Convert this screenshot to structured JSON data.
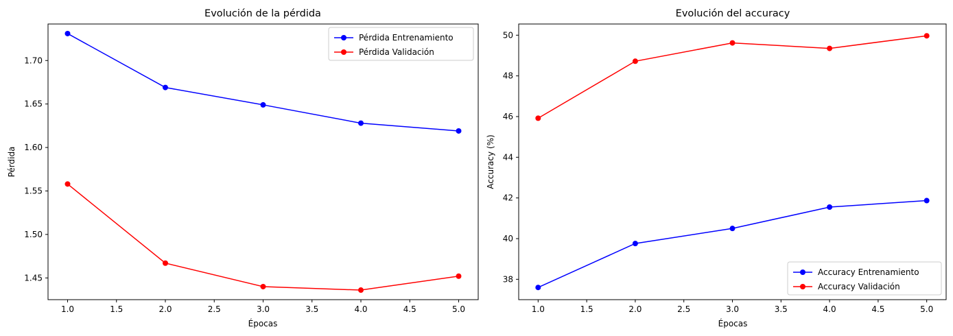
{
  "chart_data": [
    {
      "type": "line",
      "title": "Evolución de la pérdida",
      "xlabel": "Épocas",
      "ylabel": "Pérdida",
      "xlim": [
        0.8,
        5.2
      ],
      "ylim": [
        1.425,
        1.742
      ],
      "xticks": [
        "1.0",
        "1.5",
        "2.0",
        "2.5",
        "3.0",
        "3.5",
        "4.0",
        "4.5",
        "5.0"
      ],
      "yticks": [
        "1.45",
        "1.50",
        "1.55",
        "1.60",
        "1.65",
        "1.70"
      ],
      "grid": false,
      "legend_position": "top-right",
      "x": [
        1,
        2,
        3,
        4,
        5
      ],
      "series": [
        {
          "name": "Pérdida Entrenamiento",
          "color": "#0000ff",
          "values": [
            1.731,
            1.669,
            1.649,
            1.628,
            1.619
          ]
        },
        {
          "name": "Pérdida Validación",
          "color": "#ff0000",
          "values": [
            1.558,
            1.467,
            1.44,
            1.436,
            1.452
          ]
        }
      ]
    },
    {
      "type": "line",
      "title": "Evolución del accuracy",
      "xlabel": "Épocas",
      "ylabel": "Accuracy (%)",
      "xlim": [
        0.8,
        5.2
      ],
      "ylim": [
        37.0,
        50.55
      ],
      "xticks": [
        "1.0",
        "1.5",
        "2.0",
        "2.5",
        "3.0",
        "3.5",
        "4.0",
        "4.5",
        "5.0"
      ],
      "yticks": [
        "38",
        "40",
        "42",
        "44",
        "46",
        "48",
        "50"
      ],
      "grid": false,
      "legend_position": "bottom-right",
      "x": [
        1,
        2,
        3,
        4,
        5
      ],
      "series": [
        {
          "name": "Accuracy Entrenamiento",
          "color": "#0000ff",
          "values": [
            37.6,
            39.76,
            40.5,
            41.55,
            41.87
          ]
        },
        {
          "name": "Accuracy Validación",
          "color": "#ff0000",
          "values": [
            45.92,
            48.72,
            49.62,
            49.35,
            49.97
          ]
        }
      ]
    }
  ]
}
